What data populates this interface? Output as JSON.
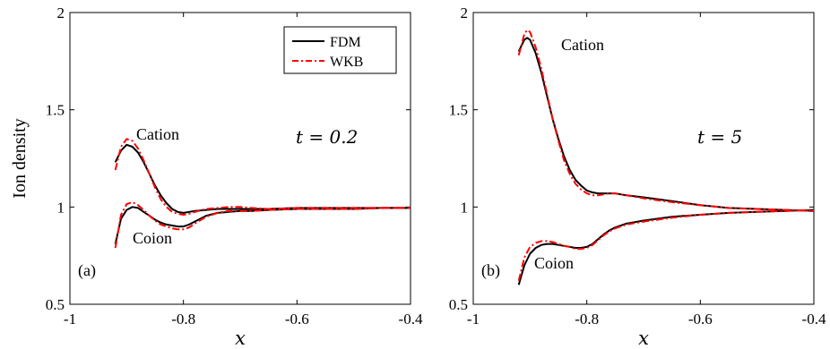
{
  "chart_data": [
    {
      "type": "line",
      "panel_label": "(a)",
      "xlabel": "x",
      "ylabel": "Ion density",
      "xlim": [
        -1,
        -0.4
      ],
      "ylim": [
        0.5,
        2
      ],
      "xticks": [
        "-1",
        "-0.8",
        "-0.6",
        "-0.4"
      ],
      "yticks": [
        "0.5",
        "1",
        "1.5",
        "2"
      ],
      "time_label": "t = 0.2",
      "legend": {
        "placement": "top-right",
        "entries": [
          "FDM",
          "WKB"
        ]
      },
      "annotations": [
        "Cation",
        "Coion"
      ],
      "series": [
        {
          "name": "FDM",
          "style": "solid",
          "color": "#000000",
          "curves": [
            {
              "label": "Cation",
              "x": [
                -0.92,
                -0.91,
                -0.9,
                -0.89,
                -0.88,
                -0.87,
                -0.86,
                -0.85,
                -0.84,
                -0.83,
                -0.82,
                -0.81,
                -0.8,
                -0.79,
                -0.78,
                -0.76,
                -0.74,
                -0.72,
                -0.7,
                -0.68,
                -0.65,
                -0.6,
                -0.55,
                -0.5,
                -0.45,
                -0.4
              ],
              "y": [
                1.23,
                1.29,
                1.32,
                1.31,
                1.28,
                1.23,
                1.17,
                1.11,
                1.06,
                1.02,
                0.99,
                0.975,
                0.97,
                0.975,
                0.98,
                0.985,
                0.99,
                0.99,
                0.99,
                0.99,
                0.99,
                0.995,
                0.995,
                0.995,
                0.995,
                0.995
              ]
            },
            {
              "label": "Coion",
              "x": [
                -0.92,
                -0.91,
                -0.9,
                -0.89,
                -0.88,
                -0.87,
                -0.86,
                -0.85,
                -0.84,
                -0.83,
                -0.82,
                -0.81,
                -0.8,
                -0.79,
                -0.78,
                -0.76,
                -0.74,
                -0.72,
                -0.7,
                -0.68,
                -0.65,
                -0.6,
                -0.55,
                -0.5,
                -0.45,
                -0.4
              ],
              "y": [
                0.81,
                0.94,
                0.985,
                1.0,
                0.995,
                0.975,
                0.955,
                0.935,
                0.92,
                0.91,
                0.905,
                0.9,
                0.9,
                0.91,
                0.925,
                0.955,
                0.97,
                0.975,
                0.98,
                0.98,
                0.985,
                0.99,
                0.99,
                0.99,
                0.995,
                0.995
              ]
            }
          ]
        },
        {
          "name": "WKB",
          "style": "dash-dot",
          "color": "#ff0000",
          "curves": [
            {
              "label": "Cation",
              "x": [
                -0.92,
                -0.91,
                -0.9,
                -0.89,
                -0.88,
                -0.87,
                -0.86,
                -0.85,
                -0.84,
                -0.83,
                -0.82,
                -0.81,
                -0.8,
                -0.79,
                -0.78,
                -0.76,
                -0.74,
                -0.72,
                -0.7,
                -0.68,
                -0.65,
                -0.6,
                -0.55,
                -0.5,
                -0.45,
                -0.4
              ],
              "y": [
                1.19,
                1.31,
                1.35,
                1.34,
                1.3,
                1.24,
                1.17,
                1.1,
                1.04,
                1.0,
                0.975,
                0.965,
                0.96,
                0.965,
                0.975,
                0.99,
                0.995,
                1.0,
                1.0,
                0.995,
                0.99,
                0.995,
                0.995,
                0.995,
                0.995,
                0.995
              ]
            },
            {
              "label": "Coion",
              "x": [
                -0.92,
                -0.91,
                -0.9,
                -0.89,
                -0.88,
                -0.87,
                -0.86,
                -0.85,
                -0.84,
                -0.83,
                -0.82,
                -0.81,
                -0.8,
                -0.79,
                -0.78,
                -0.76,
                -0.74,
                -0.72,
                -0.7,
                -0.68,
                -0.65,
                -0.6,
                -0.55,
                -0.5,
                -0.45,
                -0.4
              ],
              "y": [
                0.79,
                0.96,
                1.015,
                1.025,
                1.01,
                0.985,
                0.955,
                0.93,
                0.91,
                0.9,
                0.89,
                0.885,
                0.885,
                0.895,
                0.915,
                0.95,
                0.97,
                0.98,
                0.98,
                0.98,
                0.985,
                0.99,
                0.99,
                0.99,
                0.995,
                0.995
              ]
            }
          ]
        }
      ]
    },
    {
      "type": "line",
      "panel_label": "(b)",
      "xlabel": "x",
      "ylabel": "",
      "xlim": [
        -1,
        -0.4
      ],
      "ylim": [
        0.5,
        2
      ],
      "xticks": [
        "-1",
        "-0.8",
        "-0.6",
        "-0.4"
      ],
      "yticks": [
        "0.5",
        "1",
        "1.5",
        "2"
      ],
      "time_label": "t = 5",
      "annotations": [
        "Cation",
        "Coion"
      ],
      "series": [
        {
          "name": "FDM",
          "style": "solid",
          "color": "#000000",
          "curves": [
            {
              "label": "Cation",
              "x": [
                -0.92,
                -0.91,
                -0.905,
                -0.9,
                -0.89,
                -0.88,
                -0.87,
                -0.86,
                -0.85,
                -0.84,
                -0.83,
                -0.82,
                -0.81,
                -0.8,
                -0.79,
                -0.78,
                -0.77,
                -0.76,
                -0.75,
                -0.73,
                -0.7,
                -0.65,
                -0.6,
                -0.55,
                -0.5,
                -0.45,
                -0.4
              ],
              "y": [
                1.8,
                1.86,
                1.87,
                1.86,
                1.79,
                1.69,
                1.57,
                1.45,
                1.35,
                1.26,
                1.19,
                1.14,
                1.11,
                1.085,
                1.075,
                1.07,
                1.07,
                1.07,
                1.07,
                1.06,
                1.05,
                1.03,
                1.01,
                0.995,
                0.99,
                0.985,
                0.98
              ]
            },
            {
              "label": "Coion",
              "x": [
                -0.92,
                -0.91,
                -0.9,
                -0.89,
                -0.88,
                -0.87,
                -0.86,
                -0.85,
                -0.84,
                -0.83,
                -0.82,
                -0.81,
                -0.8,
                -0.79,
                -0.78,
                -0.77,
                -0.76,
                -0.75,
                -0.73,
                -0.7,
                -0.65,
                -0.6,
                -0.55,
                -0.5,
                -0.45,
                -0.4
              ],
              "y": [
                0.6,
                0.7,
                0.76,
                0.79,
                0.805,
                0.81,
                0.81,
                0.805,
                0.8,
                0.795,
                0.79,
                0.79,
                0.795,
                0.81,
                0.835,
                0.86,
                0.88,
                0.895,
                0.915,
                0.93,
                0.95,
                0.96,
                0.97,
                0.975,
                0.98,
                0.985
              ]
            }
          ]
        },
        {
          "name": "WKB",
          "style": "dash-dot",
          "color": "#ff0000",
          "curves": [
            {
              "label": "Cation",
              "x": [
                -0.92,
                -0.91,
                -0.905,
                -0.9,
                -0.89,
                -0.88,
                -0.87,
                -0.86,
                -0.85,
                -0.84,
                -0.83,
                -0.82,
                -0.81,
                -0.8,
                -0.79,
                -0.78,
                -0.77,
                -0.76,
                -0.75,
                -0.73,
                -0.7,
                -0.65,
                -0.6,
                -0.55,
                -0.5,
                -0.45,
                -0.4
              ],
              "y": [
                1.78,
                1.89,
                1.91,
                1.9,
                1.82,
                1.71,
                1.58,
                1.45,
                1.34,
                1.24,
                1.17,
                1.12,
                1.09,
                1.07,
                1.06,
                1.06,
                1.065,
                1.07,
                1.07,
                1.06,
                1.045,
                1.025,
                1.01,
                0.995,
                0.99,
                0.985,
                0.98
              ]
            },
            {
              "label": "Coion",
              "x": [
                -0.92,
                -0.91,
                -0.9,
                -0.89,
                -0.88,
                -0.87,
                -0.86,
                -0.85,
                -0.84,
                -0.83,
                -0.82,
                -0.81,
                -0.8,
                -0.79,
                -0.78,
                -0.77,
                -0.76,
                -0.75,
                -0.73,
                -0.7,
                -0.65,
                -0.6,
                -0.55,
                -0.5,
                -0.45,
                -0.4
              ],
              "y": [
                0.62,
                0.74,
                0.795,
                0.815,
                0.825,
                0.825,
                0.82,
                0.81,
                0.8,
                0.795,
                0.785,
                0.785,
                0.79,
                0.805,
                0.83,
                0.855,
                0.875,
                0.89,
                0.91,
                0.925,
                0.945,
                0.96,
                0.97,
                0.975,
                0.98,
                0.985
              ]
            }
          ]
        }
      ]
    }
  ]
}
